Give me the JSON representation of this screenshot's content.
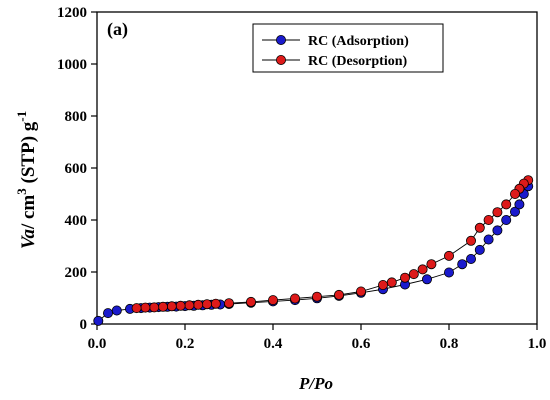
{
  "chart_data": {
    "type": "scatter",
    "panel_label": "(a)",
    "xlabel": "P/Po",
    "ylabel": {
      "var": "Va",
      "rest": "/ cm",
      "sup1": "3",
      "mid": " (STP) g",
      "sup2": "-1"
    },
    "xlim": [
      0.0,
      1.0
    ],
    "ylim": [
      0,
      1200
    ],
    "x_ticks": [
      0.0,
      0.2,
      0.4,
      0.6,
      0.8,
      1.0
    ],
    "x_tick_labels": [
      "0.0",
      "0.2",
      "0.4",
      "0.6",
      "0.8",
      "1.0"
    ],
    "y_ticks": [
      0,
      200,
      400,
      600,
      800,
      1000,
      1200
    ],
    "y_tick_labels": [
      "0",
      "200",
      "400",
      "600",
      "800",
      "1000",
      "1200"
    ],
    "grid": false,
    "legend_position": "top-right",
    "series": [
      {
        "name": "RC (Adsorption)",
        "color": "#1a1acc",
        "x": [
          0.003,
          0.025,
          0.045,
          0.075,
          0.1,
          0.12,
          0.14,
          0.16,
          0.18,
          0.2,
          0.22,
          0.24,
          0.26,
          0.28,
          0.3,
          0.35,
          0.4,
          0.45,
          0.5,
          0.55,
          0.6,
          0.65,
          0.7,
          0.75,
          0.8,
          0.83,
          0.85,
          0.87,
          0.89,
          0.91,
          0.93,
          0.95,
          0.96,
          0.97,
          0.98
        ],
        "y": [
          12,
          42,
          52,
          58,
          61,
          63,
          65,
          66,
          67,
          69,
          70,
          72,
          74,
          75,
          77,
          82,
          87,
          92,
          99,
          108,
          120,
          134,
          152,
          172,
          198,
          230,
          250,
          285,
          325,
          360,
          400,
          432,
          460,
          500,
          530
        ]
      },
      {
        "name": "RC (Desorption)",
        "color": "#dd1a1a",
        "x": [
          0.98,
          0.97,
          0.96,
          0.95,
          0.93,
          0.91,
          0.89,
          0.87,
          0.85,
          0.8,
          0.76,
          0.74,
          0.72,
          0.7,
          0.67,
          0.65,
          0.6,
          0.55,
          0.5,
          0.45,
          0.4,
          0.35,
          0.3,
          0.27,
          0.25,
          0.23,
          0.21,
          0.19,
          0.17,
          0.15,
          0.13,
          0.11,
          0.09
        ],
        "y": [
          553,
          540,
          520,
          500,
          460,
          430,
          400,
          370,
          320,
          262,
          230,
          210,
          192,
          178,
          160,
          150,
          125,
          112,
          105,
          98,
          92,
          85,
          80,
          78,
          76,
          74,
          72,
          70,
          68,
          66,
          64,
          63,
          61
        ]
      }
    ]
  }
}
